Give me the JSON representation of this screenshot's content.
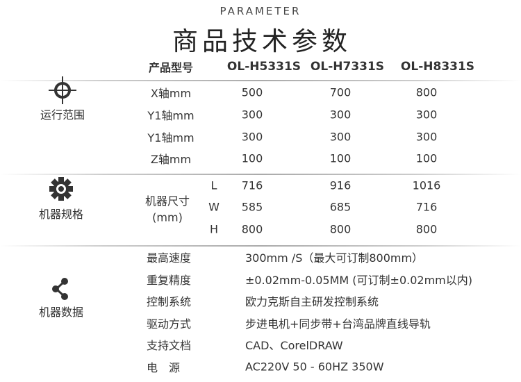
{
  "header": {
    "subtitle": "PARAMETER",
    "title": "商品技术参数"
  },
  "table": {
    "model_label": "产品型号",
    "models": [
      "OL-H5331S",
      "OL-H7331S",
      "OL-H8331S"
    ],
    "sections": [
      {
        "name": "运行范围",
        "icon": "crosshair-icon"
      },
      {
        "name": "机器规格",
        "icon": "gear-icon"
      },
      {
        "name": "机器数据",
        "icon": "share-icon"
      }
    ],
    "range_rows": [
      {
        "label": "X轴mm",
        "values": [
          "500",
          "700",
          "800"
        ]
      },
      {
        "label": "Y1轴mm",
        "values": [
          "300",
          "300",
          "300"
        ]
      },
      {
        "label": "Y1轴mm",
        "values": [
          "300",
          "300",
          "300"
        ]
      },
      {
        "label": "Z轴mm",
        "values": [
          "100",
          "100",
          "100"
        ]
      }
    ],
    "size": {
      "label": "机器尺寸",
      "unit": "(mm)",
      "rows": [
        {
          "dim": "L",
          "values": [
            "716",
            "916",
            "1016"
          ]
        },
        {
          "dim": "W",
          "values": [
            "585",
            "685",
            "716"
          ]
        },
        {
          "dim": "H",
          "values": [
            "800",
            "800",
            "800"
          ]
        }
      ]
    },
    "data_rows": [
      {
        "label": "最高速度",
        "value": "300mm /S（最大可订制800mm）"
      },
      {
        "label": "重复精度",
        "value": "±0.02mm-0.05MM (可订制±0.02mm以内)"
      },
      {
        "label": "控制系统",
        "value": "欧力克斯自主研发控制系统"
      },
      {
        "label": "驱动方式",
        "value": "步进电机+同步带+台湾品牌直线导轨"
      },
      {
        "label": "支持文档",
        "value": "CAD、CorelDRAW"
      },
      {
        "label": "电　源",
        "value": "AC220V 50 - 60HZ 350W"
      }
    ]
  }
}
